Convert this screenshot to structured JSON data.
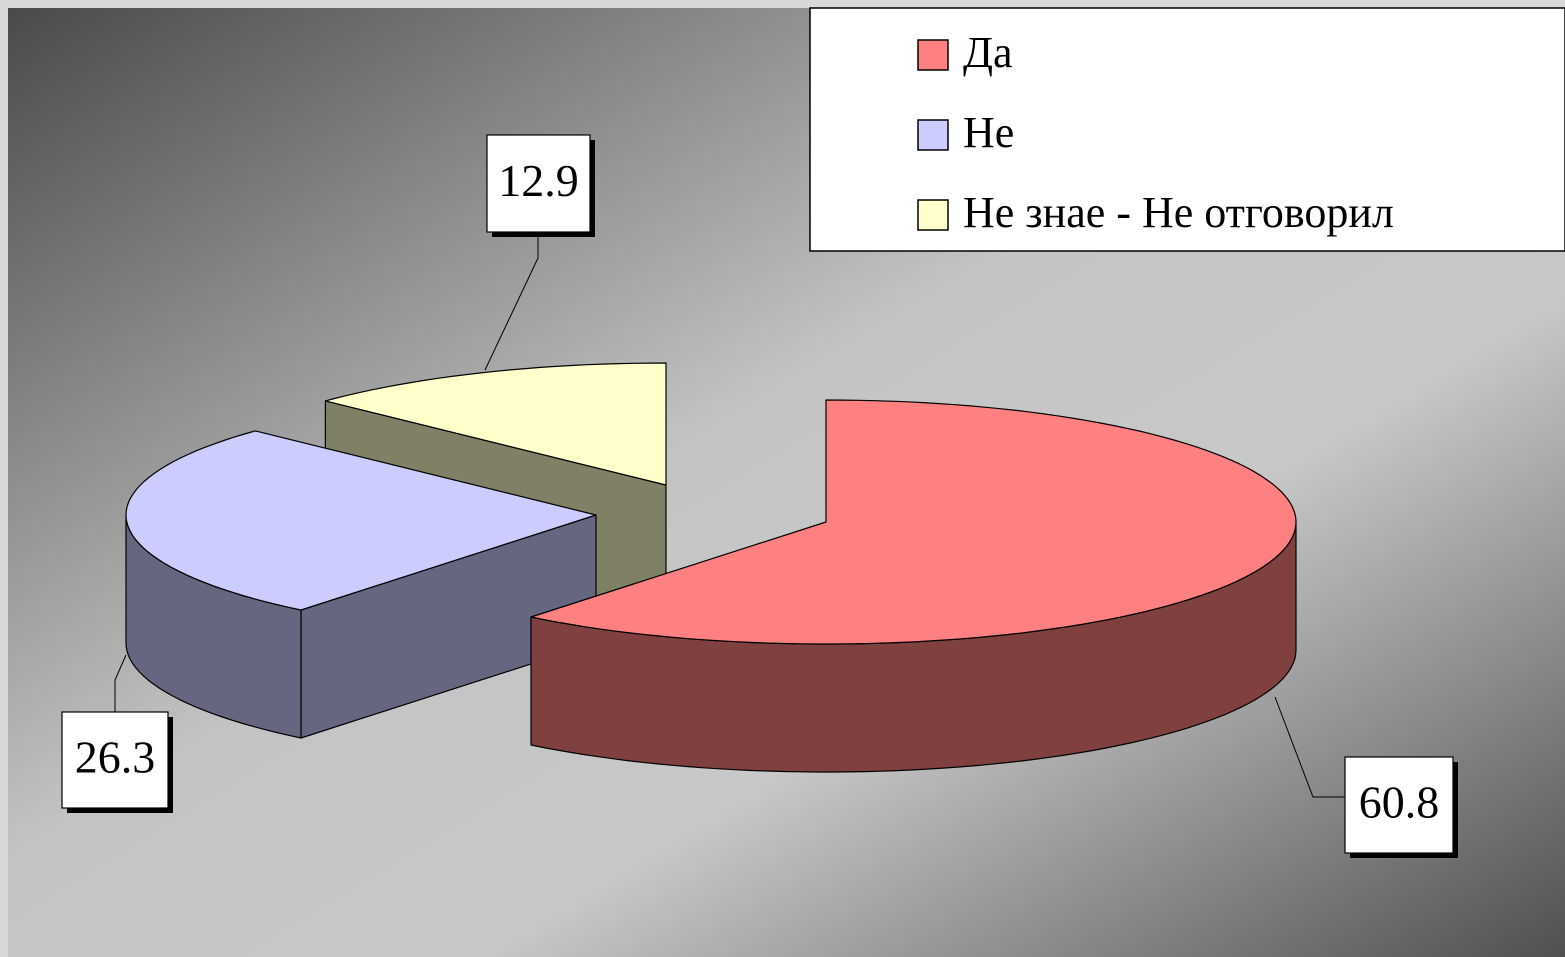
{
  "chart_data": {
    "type": "pie3d",
    "categories": [
      "Да",
      "Не",
      "Не знае - Не отговорил"
    ],
    "values": [
      60.8,
      26.3,
      12.9
    ],
    "colors": [
      "#ff8080",
      "#ccccff",
      "#ffffcc"
    ],
    "legend": "top-right"
  }
}
